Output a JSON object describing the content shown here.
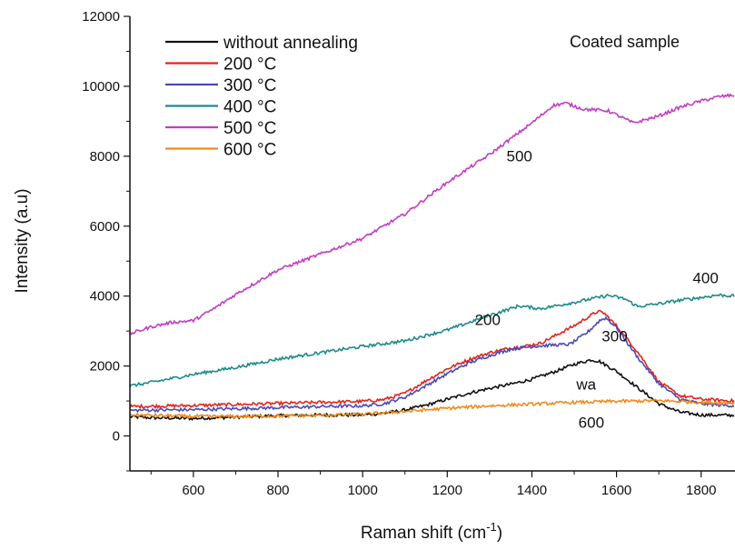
{
  "chart_data": {
    "type": "line",
    "title": "",
    "corner_label": "Coated sample",
    "xlabel_main": "Raman shift (cm",
    "xlabel_sup": "-1",
    "xlabel_end": ")",
    "ylabel": "Intensity (a.u)",
    "xlim": [
      450,
      1880
    ],
    "ylim": [
      -1000,
      12000
    ],
    "x_ticks": [
      600,
      800,
      1000,
      1200,
      1400,
      1600,
      1800
    ],
    "y_ticks": [
      0,
      2000,
      4000,
      6000,
      8000,
      10000,
      12000
    ],
    "legend_position": "top-left",
    "series": [
      {
        "name": "without annealing",
        "color": "#111111",
        "points": [
          [
            450,
            550
          ],
          [
            500,
            520
          ],
          [
            600,
            500
          ],
          [
            700,
            540
          ],
          [
            800,
            580
          ],
          [
            900,
            600
          ],
          [
            1000,
            600
          ],
          [
            1050,
            650
          ],
          [
            1100,
            740
          ],
          [
            1150,
            880
          ],
          [
            1200,
            1050
          ],
          [
            1250,
            1220
          ],
          [
            1300,
            1360
          ],
          [
            1350,
            1480
          ],
          [
            1400,
            1620
          ],
          [
            1450,
            1820
          ],
          [
            1500,
            2050
          ],
          [
            1540,
            2180
          ],
          [
            1560,
            2130
          ],
          [
            1600,
            1850
          ],
          [
            1650,
            1380
          ],
          [
            1700,
            920
          ],
          [
            1750,
            680
          ],
          [
            1800,
            600
          ],
          [
            1880,
            590
          ]
        ]
      },
      {
        "name": "200 °C",
        "color": "#e0251c",
        "points": [
          [
            450,
            840
          ],
          [
            500,
            850
          ],
          [
            600,
            870
          ],
          [
            700,
            900
          ],
          [
            800,
            930
          ],
          [
            900,
            960
          ],
          [
            1000,
            990
          ],
          [
            1050,
            1040
          ],
          [
            1100,
            1220
          ],
          [
            1150,
            1580
          ],
          [
            1200,
            1920
          ],
          [
            1250,
            2180
          ],
          [
            1300,
            2380
          ],
          [
            1350,
            2520
          ],
          [
            1380,
            2560
          ],
          [
            1420,
            2650
          ],
          [
            1460,
            2900
          ],
          [
            1500,
            3150
          ],
          [
            1530,
            3380
          ],
          [
            1555,
            3560
          ],
          [
            1570,
            3520
          ],
          [
            1600,
            3150
          ],
          [
            1650,
            2400
          ],
          [
            1700,
            1550
          ],
          [
            1750,
            1150
          ],
          [
            1800,
            1050
          ],
          [
            1880,
            1000
          ]
        ]
      },
      {
        "name": "300 °C",
        "color": "#4b4bb5",
        "points": [
          [
            450,
            730
          ],
          [
            500,
            740
          ],
          [
            600,
            750
          ],
          [
            700,
            780
          ],
          [
            800,
            810
          ],
          [
            900,
            840
          ],
          [
            1000,
            860
          ],
          [
            1050,
            920
          ],
          [
            1100,
            1110
          ],
          [
            1150,
            1440
          ],
          [
            1200,
            1780
          ],
          [
            1250,
            2080
          ],
          [
            1300,
            2300
          ],
          [
            1350,
            2480
          ],
          [
            1400,
            2560
          ],
          [
            1450,
            2600
          ],
          [
            1490,
            2620
          ],
          [
            1530,
            2950
          ],
          [
            1560,
            3300
          ],
          [
            1575,
            3380
          ],
          [
            1600,
            3100
          ],
          [
            1650,
            2250
          ],
          [
            1700,
            1500
          ],
          [
            1750,
            1050
          ],
          [
            1800,
            920
          ],
          [
            1880,
            860
          ]
        ]
      },
      {
        "name": "400 °C",
        "color": "#1f8a8a",
        "points": [
          [
            450,
            1430
          ],
          [
            500,
            1530
          ],
          [
            600,
            1760
          ],
          [
            700,
            1960
          ],
          [
            800,
            2200
          ],
          [
            900,
            2380
          ],
          [
            1000,
            2560
          ],
          [
            1100,
            2720
          ],
          [
            1200,
            3030
          ],
          [
            1300,
            3450
          ],
          [
            1370,
            3720
          ],
          [
            1420,
            3640
          ],
          [
            1500,
            3820
          ],
          [
            1580,
            4020
          ],
          [
            1620,
            3920
          ],
          [
            1650,
            3700
          ],
          [
            1700,
            3780
          ],
          [
            1750,
            3880
          ],
          [
            1800,
            3960
          ],
          [
            1840,
            4030
          ],
          [
            1880,
            4000
          ]
        ]
      },
      {
        "name": "500 °C",
        "color": "#c03fc0",
        "points": [
          [
            450,
            2920
          ],
          [
            500,
            3120
          ],
          [
            550,
            3250
          ],
          [
            600,
            3300
          ],
          [
            650,
            3650
          ],
          [
            700,
            4050
          ],
          [
            800,
            4750
          ],
          [
            900,
            5200
          ],
          [
            1000,
            5650
          ],
          [
            1100,
            6350
          ],
          [
            1200,
            7250
          ],
          [
            1300,
            8050
          ],
          [
            1400,
            8950
          ],
          [
            1450,
            9450
          ],
          [
            1480,
            9520
          ],
          [
            1520,
            9350
          ],
          [
            1580,
            9300
          ],
          [
            1640,
            8950
          ],
          [
            1700,
            9150
          ],
          [
            1750,
            9400
          ],
          [
            1800,
            9580
          ],
          [
            1840,
            9700
          ],
          [
            1880,
            9750
          ]
        ]
      },
      {
        "name": "600 °C",
        "color": "#f08a1e",
        "points": [
          [
            450,
            600
          ],
          [
            500,
            590
          ],
          [
            600,
            560
          ],
          [
            700,
            560
          ],
          [
            800,
            570
          ],
          [
            900,
            590
          ],
          [
            1000,
            620
          ],
          [
            1100,
            700
          ],
          [
            1200,
            790
          ],
          [
            1300,
            860
          ],
          [
            1400,
            910
          ],
          [
            1500,
            960
          ],
          [
            1600,
            990
          ],
          [
            1700,
            1010
          ],
          [
            1800,
            960
          ],
          [
            1880,
            940
          ]
        ]
      }
    ],
    "annotations": [
      {
        "text": "500",
        "x": 1340,
        "y": 7850
      },
      {
        "text": "400",
        "x": 1780,
        "y": 4370
      },
      {
        "text": "200",
        "x": 1265,
        "y": 3170
      },
      {
        "text": "300",
        "x": 1565,
        "y": 2710
      },
      {
        "text": "wa",
        "x": 1505,
        "y": 1330
      },
      {
        "text": "600",
        "x": 1510,
        "y": 230
      }
    ]
  }
}
